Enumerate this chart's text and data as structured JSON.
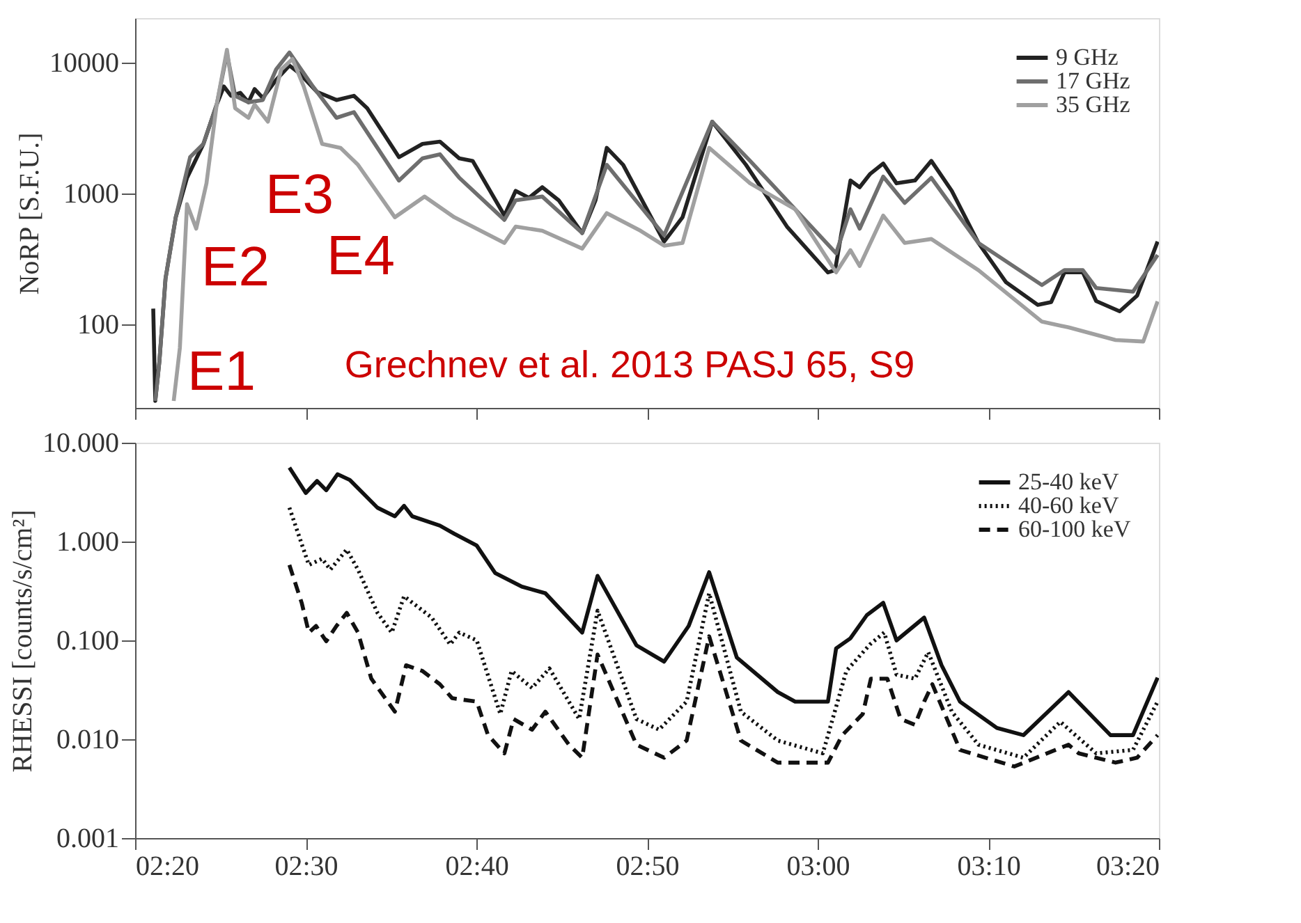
{
  "chart_data": [
    {
      "type": "line",
      "ylabel": "NoRP [S.F.U.]",
      "log": true,
      "grid": false,
      "legend": "top right",
      "tick_labels": "y",
      "xlim": [
        2.3333,
        3.3333
      ],
      "xticks": [
        {
          "value": 2.3333,
          "label": null
        },
        {
          "value": 2.5,
          "label": null
        },
        {
          "value": 2.6667,
          "label": null
        },
        {
          "value": 2.8333,
          "label": null
        },
        {
          "value": 3.0,
          "label": null
        },
        {
          "value": 3.1667,
          "label": null
        },
        {
          "value": 3.3333,
          "label": null
        }
      ],
      "ylim": [
        23,
        22000
      ],
      "yticks": [
        {
          "value": 100,
          "label": "100"
        },
        {
          "value": 1000,
          "label": "1000"
        },
        {
          "value": 10000,
          "label": "10000"
        }
      ],
      "annotations": [
        "E1",
        "E2",
        "E3",
        "E4",
        "Grechnev et al. 2013 PASJ 65, S9"
      ],
      "series": [
        {
          "name": "9 GHz",
          "color": "#222222",
          "line_style": "solid",
          "x": [
            2.351,
            2.353,
            2.357,
            2.363,
            2.373,
            2.384,
            2.4,
            2.413,
            2.42,
            2.427,
            2.436,
            2.444,
            2.45,
            2.458,
            2.471,
            2.484,
            2.494,
            2.511,
            2.53,
            2.547,
            2.56,
            2.591,
            2.614,
            2.631,
            2.65,
            2.663,
            2.694,
            2.705,
            2.718,
            2.731,
            2.747,
            2.77,
            2.783,
            2.794,
            2.81,
            2.85,
            2.868,
            2.897,
            2.93,
            2.97,
            3.01,
            3.017,
            3.032,
            3.041,
            3.051,
            3.064,
            3.077,
            3.095,
            3.111,
            3.131,
            3.157,
            3.184,
            3.215,
            3.228,
            3.241,
            3.259,
            3.272,
            3.295,
            3.312,
            3.332
          ],
          "values": [
            132,
            26,
            52,
            224,
            660,
            1320,
            2400,
            4800,
            6600,
            5600,
            5900,
            5000,
            6300,
            5400,
            7400,
            9550,
            8300,
            6000,
            5200,
            5600,
            4500,
            1900,
            2400,
            2500,
            1860,
            1780,
            680,
            1050,
            930,
            1120,
            890,
            500,
            890,
            2240,
            1660,
            430,
            660,
            3550,
            1660,
            560,
            250,
            260,
            1260,
            1120,
            1410,
            1700,
            1200,
            1260,
            1780,
            1050,
            420,
            210,
            141,
            148,
            250,
            250,
            151,
            126,
            166,
            430
          ]
        },
        {
          "name": "17 GHz",
          "color": "#6e6e6e",
          "line_style": "solid",
          "x": [
            2.353,
            2.357,
            2.363,
            2.373,
            2.387,
            2.4,
            2.413,
            2.423,
            2.431,
            2.444,
            2.458,
            2.471,
            2.484,
            2.507,
            2.53,
            2.547,
            2.591,
            2.614,
            2.631,
            2.65,
            2.694,
            2.705,
            2.731,
            2.77,
            2.794,
            2.85,
            2.897,
            2.934,
            2.978,
            3.018,
            3.032,
            3.041,
            3.064,
            3.085,
            3.111,
            3.157,
            3.219,
            3.241,
            3.259,
            3.272,
            3.308,
            3.332
          ],
          "values": [
            26,
            52,
            224,
            660,
            1900,
            2400,
            4800,
            11800,
            5600,
            5000,
            5200,
            8900,
            12000,
            6600,
            3800,
            4200,
            1260,
            1860,
            2000,
            1320,
            630,
            890,
            950,
            500,
            1660,
            480,
            3550,
            1780,
            760,
            350,
            760,
            540,
            1350,
            850,
            1320,
            420,
            200,
            260,
            260,
            190,
            178,
            340
          ]
        },
        {
          "name": "35 GHz",
          "color": "#a0a0a0",
          "line_style": "solid",
          "x": [
            2.371,
            2.377,
            2.384,
            2.393,
            2.403,
            2.413,
            2.423,
            2.431,
            2.444,
            2.45,
            2.463,
            2.476,
            2.487,
            2.498,
            2.516,
            2.534,
            2.551,
            2.587,
            2.616,
            2.645,
            2.694,
            2.705,
            2.731,
            2.77,
            2.794,
            2.827,
            2.85,
            2.868,
            2.894,
            2.934,
            2.978,
            3.018,
            3.032,
            3.041,
            3.064,
            3.085,
            3.111,
            3.157,
            3.219,
            3.245,
            3.291,
            3.318,
            3.332
          ],
          "values": [
            26,
            66,
            830,
            540,
            1200,
            4800,
            12600,
            4500,
            3800,
            4800,
            3550,
            8900,
            10700,
            6600,
            2400,
            2240,
            1660,
            660,
            950,
            660,
            420,
            560,
            520,
            380,
            710,
            520,
            400,
            420,
            2240,
            1200,
            760,
            250,
            370,
            280,
            680,
            420,
            450,
            260,
            105,
            95,
            76,
            74,
            150
          ]
        }
      ]
    },
    {
      "type": "line",
      "ylabel": "RHESSI [counts/s/cm²]",
      "log": true,
      "grid": false,
      "legend": "top right",
      "xlim": [
        2.3333,
        3.3333
      ],
      "xticks": [
        {
          "value": 2.3333,
          "label": "02:20"
        },
        {
          "value": 2.5,
          "label": "02:30"
        },
        {
          "value": 2.6667,
          "label": "02:40"
        },
        {
          "value": 2.8333,
          "label": "02:50"
        },
        {
          "value": 3.0,
          "label": "03:00"
        },
        {
          "value": 3.1667,
          "label": "03:10"
        },
        {
          "value": 3.3333,
          "label": "03:20"
        }
      ],
      "ylim": [
        0.001,
        10
      ],
      "yticks": [
        {
          "value": 0.001,
          "label": "0.001"
        },
        {
          "value": 0.01,
          "label": "0.010"
        },
        {
          "value": 0.1,
          "label": "0.100"
        },
        {
          "value": 1,
          "label": "1.000"
        },
        {
          "value": 10,
          "label": "10.000"
        }
      ],
      "series": [
        {
          "name": "25-40 keV",
          "color": "#111111",
          "line_style": "solid",
          "x": [
            2.484,
            2.5,
            2.511,
            2.52,
            2.531,
            2.543,
            2.57,
            2.587,
            2.596,
            2.604,
            2.631,
            2.645,
            2.667,
            2.685,
            2.711,
            2.734,
            2.77,
            2.785,
            2.823,
            2.85,
            2.874,
            2.894,
            2.921,
            2.961,
            2.978,
            3.01,
            3.018,
            3.032,
            3.048,
            3.064,
            3.077,
            3.104,
            3.121,
            3.139,
            3.175,
            3.201,
            3.245,
            3.286,
            3.308,
            3.332
          ],
          "values": [
            5.6,
            3.1,
            4.1,
            3.3,
            4.8,
            4.2,
            2.2,
            1.8,
            2.3,
            1.8,
            1.45,
            1.2,
            0.91,
            0.48,
            0.35,
            0.3,
            0.12,
            0.45,
            0.089,
            0.061,
            0.14,
            0.49,
            0.067,
            0.03,
            0.024,
            0.024,
            0.083,
            0.105,
            0.18,
            0.24,
            0.1,
            0.17,
            0.056,
            0.024,
            0.013,
            0.011,
            0.03,
            0.011,
            0.011,
            0.042
          ]
        },
        {
          "name": "40-60 keV",
          "color": "#111111",
          "line_style": "dotted",
          "x": [
            2.484,
            2.503,
            2.516,
            2.524,
            2.54,
            2.551,
            2.57,
            2.584,
            2.596,
            2.623,
            2.641,
            2.65,
            2.667,
            2.69,
            2.701,
            2.721,
            2.738,
            2.767,
            2.785,
            2.823,
            2.845,
            2.872,
            2.894,
            2.925,
            2.961,
            3.005,
            3.028,
            3.051,
            3.065,
            3.077,
            3.095,
            3.108,
            3.131,
            3.157,
            3.201,
            3.237,
            3.272,
            3.308,
            3.332
          ],
          "values": [
            2.2,
            0.58,
            0.67,
            0.52,
            0.83,
            0.52,
            0.19,
            0.12,
            0.28,
            0.17,
            0.091,
            0.12,
            0.1,
            0.018,
            0.049,
            0.033,
            0.052,
            0.016,
            0.2,
            0.016,
            0.0125,
            0.024,
            0.3,
            0.019,
            0.0097,
            0.0072,
            0.049,
            0.091,
            0.12,
            0.045,
            0.041,
            0.076,
            0.019,
            0.0088,
            0.0065,
            0.015,
            0.0072,
            0.0078,
            0.024
          ]
        },
        {
          "name": "60-100 keV",
          "color": "#111111",
          "line_style": "dashed",
          "x": [
            2.484,
            2.496,
            2.503,
            2.51,
            2.52,
            2.53,
            2.54,
            2.551,
            2.564,
            2.587,
            2.598,
            2.614,
            2.631,
            2.643,
            2.667,
            2.678,
            2.694,
            2.703,
            2.721,
            2.734,
            2.757,
            2.77,
            2.785,
            2.823,
            2.85,
            2.872,
            2.894,
            2.925,
            2.961,
            3.01,
            3.024,
            3.044,
            3.052,
            3.068,
            3.081,
            3.095,
            3.104,
            3.112,
            3.139,
            3.192,
            3.245,
            3.255,
            3.291,
            3.312,
            3.332
          ],
          "values": [
            0.58,
            0.24,
            0.12,
            0.14,
            0.098,
            0.14,
            0.19,
            0.12,
            0.041,
            0.019,
            0.056,
            0.049,
            0.036,
            0.026,
            0.024,
            0.011,
            0.0072,
            0.016,
            0.0125,
            0.019,
            0.0088,
            0.0065,
            0.072,
            0.0088,
            0.0065,
            0.0097,
            0.11,
            0.0097,
            0.0058,
            0.0058,
            0.011,
            0.018,
            0.041,
            0.041,
            0.016,
            0.014,
            0.024,
            0.036,
            0.0078,
            0.0053,
            0.0088,
            0.0072,
            0.0058,
            0.0065,
            0.011
          ]
        }
      ]
    }
  ]
}
